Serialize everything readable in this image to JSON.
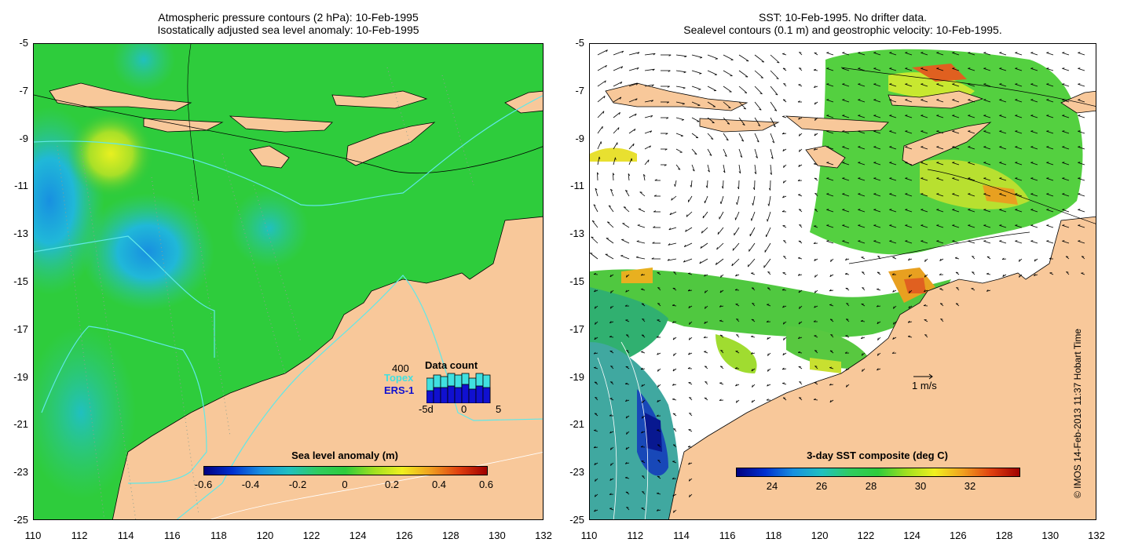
{
  "left": {
    "title_line1": "Atmospheric pressure contours (2 hPa): 10-Feb-1995",
    "title_line2": "Isostatically adjusted sea level anomaly: 10-Feb-1995",
    "colorbar": {
      "title": "Sea level anomaly (m)",
      "ticks": [
        "-0.6",
        "-0.4",
        "-0.2",
        "0",
        "0.2",
        "0.4",
        "0.6"
      ]
    },
    "data_count": {
      "title": "Data count",
      "value_label": "400",
      "series1": "Topex",
      "series2": "ERS-1",
      "axis": [
        "-5d",
        "0",
        "5"
      ]
    }
  },
  "right": {
    "title_line1": "SST: 10-Feb-1995. No drifter data.",
    "title_line2": "Sealevel contours (0.1 m) and geostrophic velocity: 10-Feb-1995.",
    "colorbar": {
      "title": "3-day SST composite (deg C)",
      "ticks": [
        "24",
        "26",
        "28",
        "30",
        "32"
      ]
    },
    "scale_label": "1 m/s"
  },
  "axes": {
    "y_ticks": [
      "-5",
      "-7",
      "-9",
      "-11",
      "-13",
      "-15",
      "-17",
      "-19",
      "-21",
      "-23",
      "-25"
    ],
    "x_ticks": [
      "110",
      "112",
      "114",
      "116",
      "118",
      "120",
      "122",
      "124",
      "126",
      "128",
      "130",
      "132"
    ]
  },
  "credit": "© IMOS 14-Feb-2013 11:37 Hobart Time",
  "colors": {
    "land": "#f8c89a",
    "ocean_green": "#2ecc2e",
    "coast": "#000000",
    "track": "#40e0e0"
  }
}
